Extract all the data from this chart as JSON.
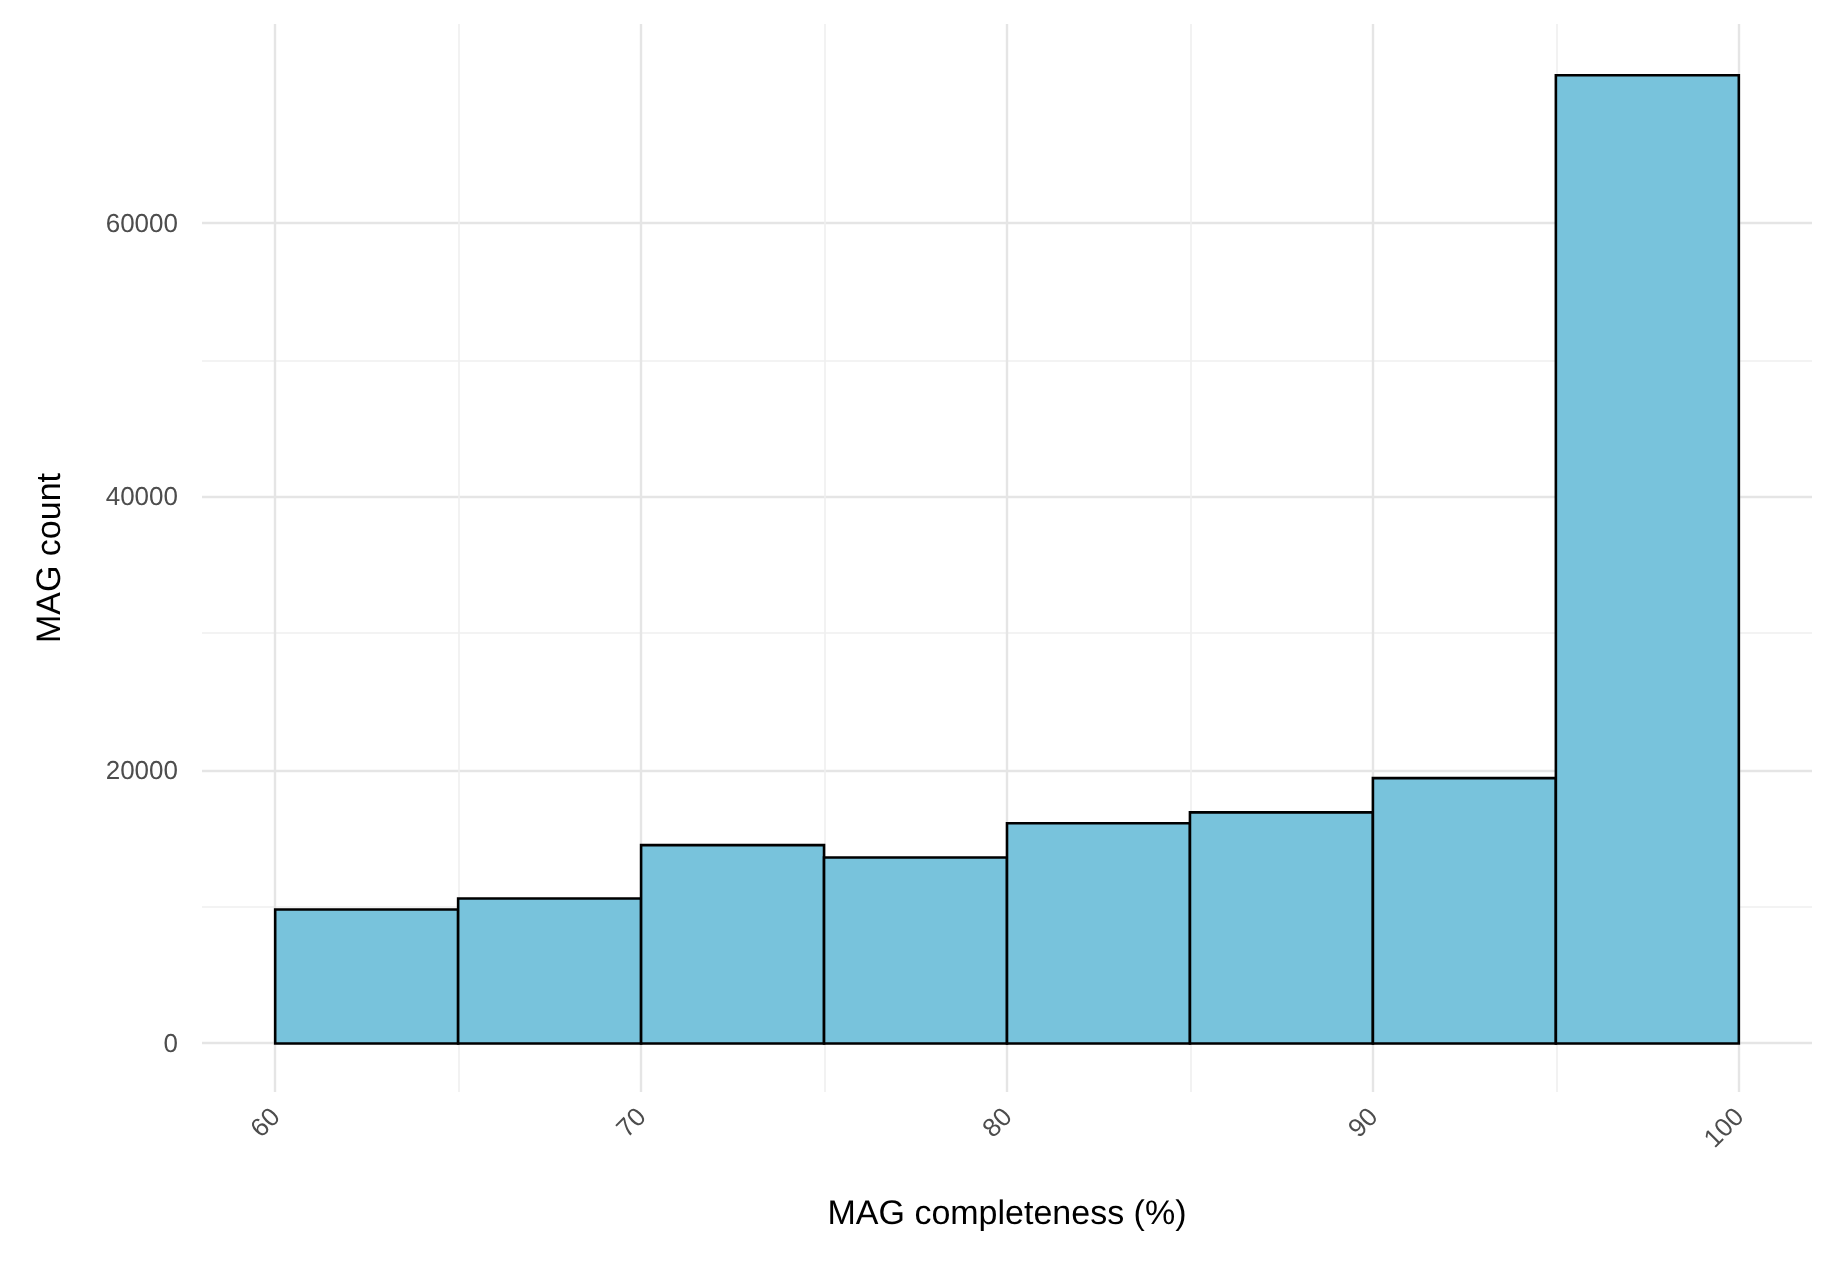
{
  "chart_data": {
    "type": "histogram",
    "xlabel": "MAG completeness (%)",
    "ylabel": "MAG count",
    "bins": [
      60,
      65,
      70,
      75,
      80,
      85,
      90,
      95,
      100
    ],
    "values": [
      9800,
      10600,
      14500,
      13600,
      16100,
      16900,
      19400,
      70800
    ],
    "color": "#78c3dc",
    "xlim": [
      58,
      102
    ],
    "xticks": [
      60,
      70,
      80,
      90,
      100
    ],
    "ylim": [
      -3550,
      74550
    ],
    "yticks": [
      0,
      20000,
      40000,
      60000
    ],
    "grid": true
  }
}
